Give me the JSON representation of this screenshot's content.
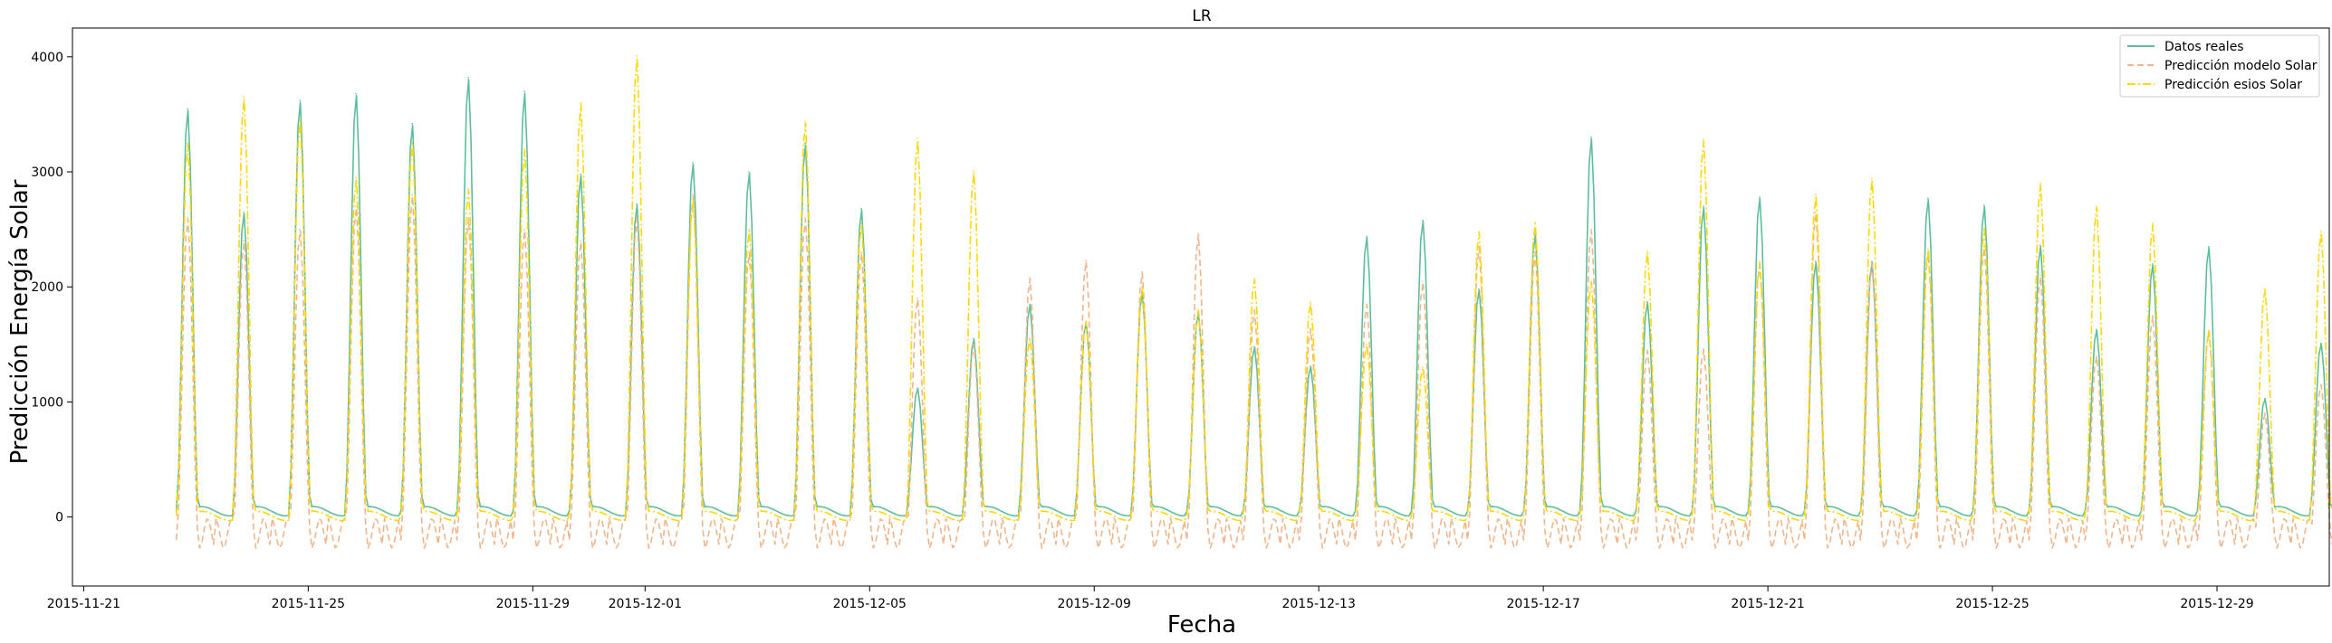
{
  "chart_data": {
    "type": "line",
    "title": "LR",
    "xlabel": "Fecha",
    "ylabel": "Predicción Energía Solar",
    "x_tick_labels": [
      "2015-11-21",
      "2015-11-25",
      "2015-11-29",
      "2015-12-01",
      "2015-12-05",
      "2015-12-09",
      "2015-12-13",
      "2015-12-17",
      "2015-12-21",
      "2015-12-25",
      "2015-12-29"
    ],
    "x_tick_days": [
      0,
      4,
      8,
      10,
      14,
      18,
      22,
      26,
      30,
      34,
      38
    ],
    "x_range_days": [
      -0.2,
      40.0
    ],
    "y_ticks": [
      0,
      1000,
      2000,
      3000,
      4000
    ],
    "ylim": [
      -600,
      4250
    ],
    "grid": false,
    "legend_position": "top-right",
    "series": [
      {
        "name": "Datos reales",
        "color": "#5dbf9a",
        "style": "solid",
        "first_day": 1.85,
        "night": 50,
        "daily_peaks": [
          3550,
          2650,
          3620,
          3680,
          3420,
          3820,
          3700,
          2980,
          2720,
          3080,
          3000,
          3250,
          2680,
          1120,
          1550,
          1850,
          1700,
          1950,
          1780,
          1480,
          1310,
          2440,
          2580,
          1980,
          2460,
          3300,
          1870,
          2700,
          2780,
          2220,
          2220,
          2770,
          2710,
          2360,
          1630,
          2200,
          2350,
          1030,
          1510
        ]
      },
      {
        "name": "Predicción modelo Solar",
        "color": "#f0b58a",
        "style": "dashed",
        "first_day": 1.85,
        "night": -200,
        "daily_peaks": [
          2600,
          2400,
          2500,
          2700,
          2800,
          2600,
          2500,
          2400,
          2600,
          2800,
          2300,
          2600,
          2300,
          1900,
          1500,
          2080,
          2230,
          2130,
          2460,
          1800,
          1640,
          1850,
          2050,
          2350,
          2300,
          2500,
          1450,
          1460,
          2200,
          2650,
          2200,
          2300,
          2350,
          2100,
          1400,
          1750,
          1620,
          900,
          1150
        ]
      },
      {
        "name": "Predicción esios Solar",
        "color": "#ffd700",
        "style": "dashdot",
        "first_day": 1.85,
        "night": 10,
        "daily_peaks": [
          3250,
          3650,
          3450,
          2950,
          3250,
          2850,
          3200,
          3600,
          4010,
          2760,
          2500,
          3440,
          2550,
          3290,
          3010,
          1550,
          1700,
          2000,
          1800,
          2070,
          1870,
          1500,
          1300,
          2480,
          2560,
          2050,
          2310,
          3280,
          2220,
          2800,
          2940,
          2330,
          2510,
          2900,
          2700,
          2550,
          1620,
          1980,
          2480
        ]
      }
    ]
  }
}
